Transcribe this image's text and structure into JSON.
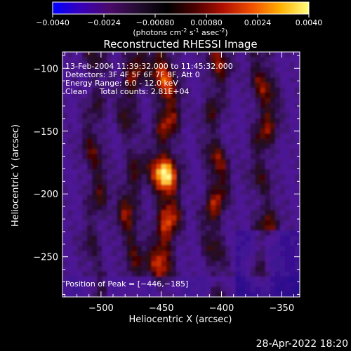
{
  "colorbar": {
    "ticks": [
      "-0.0040",
      "-0.0024",
      "-0.00080",
      "0.00080",
      "0.0024",
      "0.0040"
    ],
    "unit_label": {
      "pre": "(photons cm",
      "exp1": "-2",
      "mid1": " s",
      "exp2": "-1",
      "mid2": " asec",
      "exp3": "-2",
      "post": ")"
    },
    "colors": [
      "#0000ff",
      "#3a00b8",
      "#4a0a6a",
      "#230d30",
      "#000000",
      "#4a0000",
      "#b01000",
      "#f05000",
      "#ffb000",
      "#ffff80"
    ]
  },
  "chart_data": {
    "type": "heatmap",
    "title": "Reconstructed RHESSI Image",
    "xlabel": "Heliocentric X (arcsec)",
    "ylabel": "Heliocentric Y (arcsec)",
    "xlim": [
      -532,
      -335
    ],
    "ylim": [
      -282,
      -87
    ],
    "xticks": [
      -500,
      -450,
      -400,
      -350
    ],
    "yticks": [
      -100,
      -150,
      -200,
      -250
    ],
    "xtick_labels": [
      "−500",
      "−450",
      "−400",
      "−350"
    ],
    "ytick_labels": [
      "−100",
      "−150",
      "−200",
      "−250"
    ],
    "info_lines": [
      "13-Feb-2004 11:39:32.000 to 11:45:32.000",
      "Detectors: 3F 4F 5F 6F 7F 8F, Att 0",
      "Energy Range: 6.0 - 12.0 keV",
      "Clean     Total counts: 2.81E+04"
    ],
    "peak_annotation": "Position of Peak = [−446,−185]",
    "peak": [
      -446,
      -185
    ],
    "colorbar_range": [
      -0.004,
      0.004
    ]
  },
  "footer": {
    "timestamp": "28-Apr-2022 18:20"
  }
}
